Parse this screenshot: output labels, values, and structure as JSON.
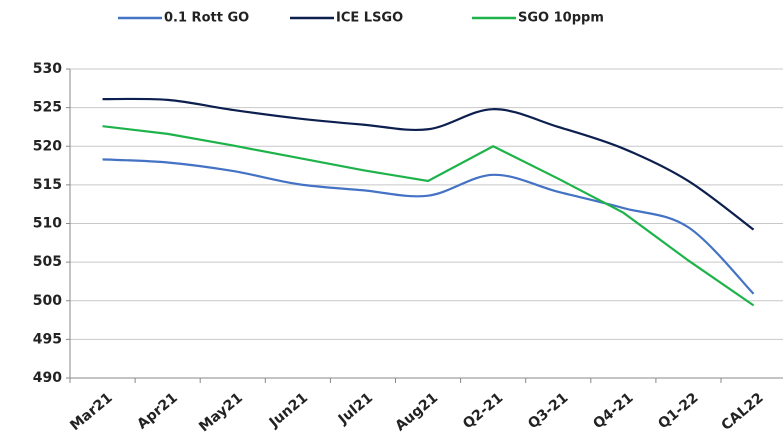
{
  "chart_data": {
    "type": "line",
    "categories": [
      "Mar21",
      "Apr21",
      "May21",
      "Jun21",
      "Jul21",
      "Aug21",
      "Q2-21",
      "Q3-21",
      "Q4-21",
      "Q1-22",
      "CAL22"
    ],
    "series": [
      {
        "name": "0.1 Rott GO",
        "color": "#4472c4",
        "smooth": true,
        "values": [
          518.3,
          517.9,
          516.8,
          515.1,
          514.3,
          513.6,
          516.3,
          514.1,
          512.0,
          509.5,
          500.9
        ]
      },
      {
        "name": "ICE LSGO",
        "color": "#0d1f4f",
        "smooth": true,
        "values": [
          526.1,
          526.0,
          524.7,
          523.6,
          522.8,
          522.2,
          524.8,
          522.5,
          519.7,
          515.5,
          509.2
        ]
      },
      {
        "name": "SGO 10ppm",
        "color": "#1db34a",
        "smooth": false,
        "values": [
          522.6,
          521.6,
          520.1,
          518.5,
          516.9,
          515.5,
          520.0,
          515.8,
          511.4,
          505.2,
          499.4
        ]
      }
    ],
    "ylim": [
      490,
      530
    ],
    "yticks": [
      490,
      495,
      500,
      505,
      510,
      515,
      520,
      525,
      530
    ],
    "grid": true,
    "legend": "top"
  }
}
